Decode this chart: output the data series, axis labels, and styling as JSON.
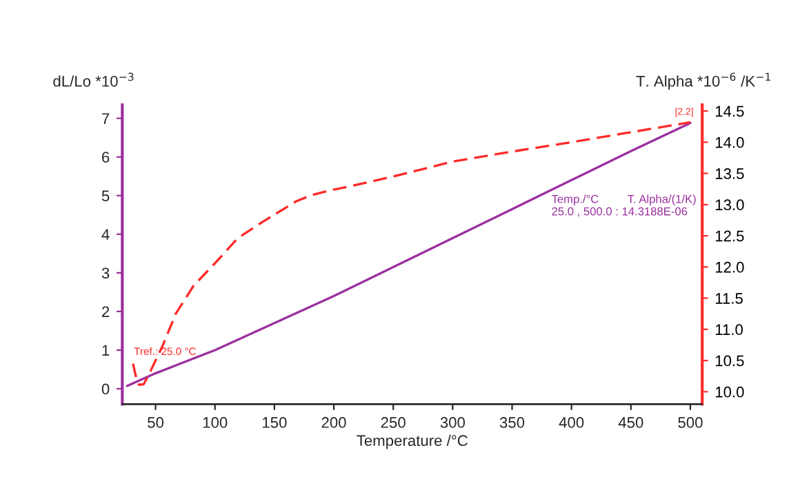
{
  "chart_data": {
    "type": "line",
    "xlabel": "Temperature /°C",
    "ylabel": "dL/Lo *10$^{−3}$",
    "y2label": "T. Alpha *10$^{−6}$ /K$^{−1}$",
    "xlim": [
      22,
      510
    ],
    "xticks": [
      50,
      100,
      150,
      200,
      250,
      300,
      350,
      400,
      450,
      500
    ],
    "ylim": [
      -0.4,
      7.35
    ],
    "yticks": [
      0,
      1,
      2,
      3,
      4,
      5,
      6,
      7
    ],
    "y2lim": [
      9.8,
      14.6
    ],
    "y2ticks": [
      {
        "value": 10,
        "label": "10.0"
      },
      {
        "value": 10.5,
        "label": "10.5"
      },
      {
        "value": 11,
        "label": "11.0"
      },
      {
        "value": 11.5,
        "label": "11.5"
      },
      {
        "value": 12,
        "label": "12.0"
      },
      {
        "value": 12.5,
        "label": "12.5"
      },
      {
        "value": 13,
        "label": "13.0"
      },
      {
        "value": 13.5,
        "label": "13.5"
      },
      {
        "value": 14,
        "label": "14.0"
      },
      {
        "value": 14.5,
        "label": "14.5"
      }
    ],
    "series": [
      {
        "color": "#9b2fa0",
        "line_style": "solid",
        "x": [
          26,
          50,
          100,
          150,
          200,
          250,
          300,
          350,
          400,
          450,
          500
        ],
        "values": [
          0.07,
          0.4,
          1.0,
          1.7,
          2.4,
          3.15,
          3.9,
          4.65,
          5.4,
          6.15,
          6.88
        ]
      },
      {
        "color": "#ff2a2a",
        "line_style": "dashed",
        "axis": "y2",
        "x": [
          31,
          34,
          36,
          40,
          45,
          56,
          67,
          82,
          101,
          119,
          139,
          150,
          158,
          168,
          181,
          195,
          215,
          250,
          300,
          350,
          400,
          450,
          500
        ],
        "values": [
          10.45,
          10.2,
          10.11,
          10.12,
          10.3,
          10.74,
          11.25,
          11.7,
          12.08,
          12.46,
          12.71,
          12.84,
          12.93,
          13.05,
          13.15,
          13.22,
          13.3,
          13.45,
          13.69,
          13.85,
          14.0,
          14.16,
          14.32
        ]
      }
    ],
    "annotations": [
      "Tref.: 25.0 °C",
      "[2.2]",
      "Temp./°C         T. Alpha/(1/K)\n25.0 , 500.0 : 14.3188E-06"
    ],
    "grid": false,
    "legend": false,
    "marker": "none"
  }
}
